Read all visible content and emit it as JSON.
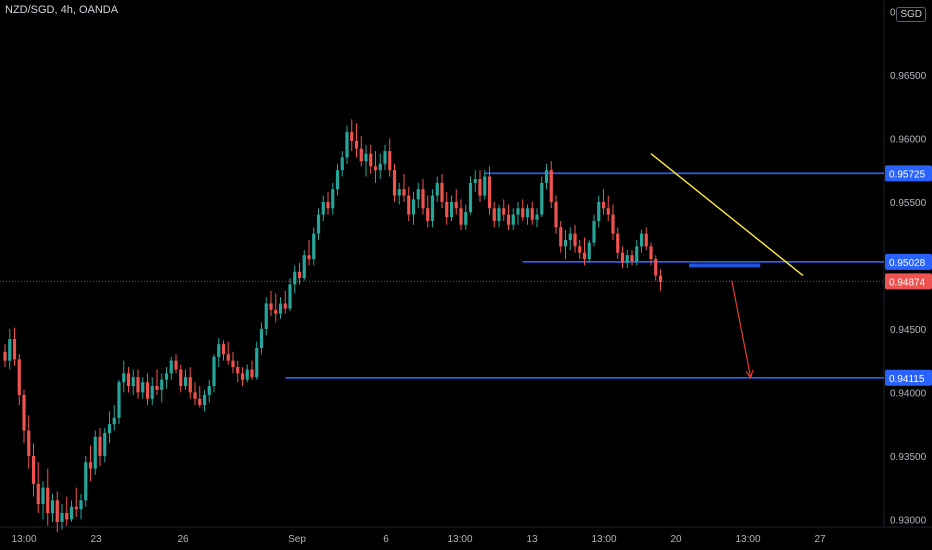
{
  "header": {
    "symbol_title": "NZD/SGD, 4h, OANDA",
    "currency_label": "SGD"
  },
  "colors": {
    "background": "#000000",
    "up": "#26a69a",
    "down": "#ef5350",
    "level_line": "#2962ff",
    "trendline": "#ffeb3b",
    "arrow": "#e53935",
    "axis_text": "#b2b5be"
  },
  "chart_data": {
    "type": "candlestick",
    "title": "NZD/SGD, 4h, OANDA",
    "ylim": [
      0.9294,
      0.9709
    ],
    "y_ticks": [
      "0.93000",
      "0.93500",
      "0.94000",
      "0.94500",
      "0.95000",
      "0.95500",
      "0.96000",
      "0.96500",
      "0.97000"
    ],
    "x_ticks": [
      "13:00",
      "23",
      "26",
      "Sep",
      "6",
      "13:00",
      "13",
      "13:00",
      "20",
      "13:00",
      "27"
    ],
    "price_labels": [
      {
        "text": "0.95725",
        "value": 0.95725,
        "style": "level"
      },
      {
        "text": "0.95028",
        "value": 0.95028,
        "style": "level"
      },
      {
        "text": "0.94874",
        "value": 0.94874,
        "style": "current"
      },
      {
        "text": "0.94115",
        "value": 0.94115,
        "style": "level"
      }
    ],
    "horizontal_levels": [
      {
        "value": 0.95725,
        "from_bar": 101
      },
      {
        "value": 0.95028,
        "from_bar": 109
      },
      {
        "value": 0.94115,
        "from_bar": 59
      }
    ],
    "current_price": 0.94874,
    "trendline": {
      "from": {
        "bar": 136,
        "value": 0.9588
      },
      "to": {
        "bar": 168,
        "value": 0.9492
      }
    },
    "projection_arrow": {
      "from": {
        "bar": 153,
        "value": 0.9488
      },
      "to": {
        "bar": 157,
        "value": 0.94115
      }
    },
    "target_box": {
      "from_bar": 144,
      "to_bar": 159,
      "value": 0.95
    },
    "candles": [
      [
        0.9432,
        0.9438,
        0.942,
        0.9425
      ],
      [
        0.9425,
        0.945,
        0.9418,
        0.9442
      ],
      [
        0.9442,
        0.9451,
        0.9421,
        0.9426
      ],
      [
        0.9426,
        0.943,
        0.939,
        0.9398
      ],
      [
        0.9398,
        0.9402,
        0.936,
        0.937
      ],
      [
        0.937,
        0.9382,
        0.934,
        0.935
      ],
      [
        0.935,
        0.936,
        0.9318,
        0.9328
      ],
      [
        0.9328,
        0.9345,
        0.9305,
        0.9312
      ],
      [
        0.9312,
        0.933,
        0.93,
        0.9325
      ],
      [
        0.9325,
        0.934,
        0.9295,
        0.9305
      ],
      [
        0.9305,
        0.932,
        0.9298,
        0.9315
      ],
      [
        0.9315,
        0.9322,
        0.929,
        0.9298
      ],
      [
        0.9298,
        0.9312,
        0.9292,
        0.9305
      ],
      [
        0.9305,
        0.9318,
        0.9295,
        0.93
      ],
      [
        0.93,
        0.9315,
        0.9298,
        0.931
      ],
      [
        0.931,
        0.9325,
        0.9302,
        0.9308
      ],
      [
        0.9308,
        0.932,
        0.93,
        0.9315
      ],
      [
        0.9315,
        0.935,
        0.931,
        0.9345
      ],
      [
        0.9345,
        0.9358,
        0.933,
        0.934
      ],
      [
        0.934,
        0.937,
        0.9335,
        0.9365
      ],
      [
        0.9365,
        0.9372,
        0.9342,
        0.935
      ],
      [
        0.935,
        0.9372,
        0.9345,
        0.9368
      ],
      [
        0.9368,
        0.9385,
        0.936,
        0.9375
      ],
      [
        0.9375,
        0.939,
        0.937,
        0.938
      ],
      [
        0.938,
        0.941,
        0.9375,
        0.9408
      ],
      [
        0.9408,
        0.9425,
        0.94,
        0.9415
      ],
      [
        0.9415,
        0.942,
        0.94,
        0.9405
      ],
      [
        0.9405,
        0.9418,
        0.9398,
        0.9412
      ],
      [
        0.9412,
        0.9418,
        0.9395,
        0.94
      ],
      [
        0.94,
        0.9412,
        0.9395,
        0.9408
      ],
      [
        0.9408,
        0.9415,
        0.939,
        0.9395
      ],
      [
        0.9395,
        0.9412,
        0.939,
        0.9405
      ],
      [
        0.9405,
        0.9418,
        0.9398,
        0.9402
      ],
      [
        0.9402,
        0.9415,
        0.9392,
        0.941
      ],
      [
        0.941,
        0.942,
        0.9403,
        0.9415
      ],
      [
        0.9415,
        0.9428,
        0.941,
        0.9425
      ],
      [
        0.9425,
        0.943,
        0.9415,
        0.9418
      ],
      [
        0.9418,
        0.9422,
        0.94,
        0.9405
      ],
      [
        0.9405,
        0.9418,
        0.9402,
        0.9412
      ],
      [
        0.9412,
        0.942,
        0.9395,
        0.94
      ],
      [
        0.94,
        0.9408,
        0.939,
        0.9395
      ],
      [
        0.9395,
        0.9405,
        0.9388,
        0.939
      ],
      [
        0.939,
        0.9402,
        0.9385,
        0.9398
      ],
      [
        0.9398,
        0.941,
        0.9392,
        0.9405
      ],
      [
        0.9405,
        0.943,
        0.94,
        0.9428
      ],
      [
        0.9428,
        0.9443,
        0.942,
        0.9438
      ],
      [
        0.9438,
        0.9441,
        0.9425,
        0.943
      ],
      [
        0.943,
        0.944,
        0.9422,
        0.9425
      ],
      [
        0.9425,
        0.9432,
        0.9415,
        0.942
      ],
      [
        0.942,
        0.9425,
        0.9408,
        0.9415
      ],
      [
        0.9415,
        0.942,
        0.9405,
        0.941
      ],
      [
        0.941,
        0.9422,
        0.9408,
        0.9418
      ],
      [
        0.9418,
        0.9425,
        0.941,
        0.9412
      ],
      [
        0.9412,
        0.944,
        0.941,
        0.9435
      ],
      [
        0.9435,
        0.9455,
        0.943,
        0.945
      ],
      [
        0.945,
        0.9475,
        0.9445,
        0.947
      ],
      [
        0.947,
        0.948,
        0.946,
        0.9465
      ],
      [
        0.9465,
        0.9478,
        0.9455,
        0.9462
      ],
      [
        0.9462,
        0.9475,
        0.9458,
        0.947
      ],
      [
        0.947,
        0.948,
        0.9462,
        0.9466
      ],
      [
        0.9466,
        0.949,
        0.9464,
        0.9485
      ],
      [
        0.9485,
        0.95,
        0.9478,
        0.9495
      ],
      [
        0.9495,
        0.9502,
        0.9485,
        0.949
      ],
      [
        0.949,
        0.9512,
        0.9488,
        0.9508
      ],
      [
        0.9508,
        0.952,
        0.95,
        0.9505
      ],
      [
        0.9505,
        0.953,
        0.95,
        0.9525
      ],
      [
        0.9525,
        0.9545,
        0.952,
        0.954
      ],
      [
        0.954,
        0.9555,
        0.9535,
        0.955
      ],
      [
        0.955,
        0.9558,
        0.954,
        0.9545
      ],
      [
        0.9545,
        0.9565,
        0.954,
        0.956
      ],
      [
        0.956,
        0.958,
        0.9555,
        0.9575
      ],
      [
        0.9575,
        0.959,
        0.957,
        0.9585
      ],
      [
        0.9585,
        0.961,
        0.958,
        0.9605
      ],
      [
        0.9605,
        0.9615,
        0.959,
        0.9598
      ],
      [
        0.9598,
        0.9612,
        0.9585,
        0.9592
      ],
      [
        0.9592,
        0.9602,
        0.9578,
        0.9582
      ],
      [
        0.9582,
        0.9595,
        0.957,
        0.9588
      ],
      [
        0.9588,
        0.9595,
        0.9572,
        0.9578
      ],
      [
        0.9578,
        0.959,
        0.9565,
        0.9575
      ],
      [
        0.9575,
        0.9588,
        0.9568,
        0.958
      ],
      [
        0.958,
        0.9595,
        0.9575,
        0.959
      ],
      [
        0.959,
        0.96,
        0.957,
        0.9575
      ],
      [
        0.9575,
        0.958,
        0.955,
        0.9555
      ],
      [
        0.9555,
        0.9565,
        0.9548,
        0.956
      ],
      [
        0.956,
        0.9572,
        0.955,
        0.9555
      ],
      [
        0.9555,
        0.9562,
        0.9535,
        0.954
      ],
      [
        0.954,
        0.9558,
        0.9532,
        0.9552
      ],
      [
        0.9552,
        0.9565,
        0.9545,
        0.956
      ],
      [
        0.956,
        0.9568,
        0.954,
        0.9545
      ],
      [
        0.9545,
        0.9555,
        0.953,
        0.9535
      ],
      [
        0.9535,
        0.956,
        0.953,
        0.9555
      ],
      [
        0.9555,
        0.957,
        0.955,
        0.9565
      ],
      [
        0.9565,
        0.9572,
        0.9545,
        0.955
      ],
      [
        0.955,
        0.9558,
        0.9532,
        0.9538
      ],
      [
        0.9538,
        0.9555,
        0.9535,
        0.955
      ],
      [
        0.955,
        0.956,
        0.954,
        0.9545
      ],
      [
        0.9545,
        0.9552,
        0.9528,
        0.9532
      ],
      [
        0.9532,
        0.9548,
        0.9528,
        0.9542
      ],
      [
        0.9542,
        0.957,
        0.954,
        0.9565
      ],
      [
        0.9565,
        0.9575,
        0.9558,
        0.9568
      ],
      [
        0.9568,
        0.9575,
        0.955,
        0.9555
      ],
      [
        0.9555,
        0.9575,
        0.9552,
        0.957
      ],
      [
        0.957,
        0.9578,
        0.954,
        0.9545
      ],
      [
        0.9545,
        0.955,
        0.953,
        0.9535
      ],
      [
        0.9535,
        0.9548,
        0.953,
        0.9545
      ],
      [
        0.9545,
        0.9552,
        0.9535,
        0.954
      ],
      [
        0.954,
        0.9548,
        0.9528,
        0.9532
      ],
      [
        0.9532,
        0.9545,
        0.9528,
        0.954
      ],
      [
        0.954,
        0.955,
        0.9532,
        0.9545
      ],
      [
        0.9545,
        0.9552,
        0.9535,
        0.9538
      ],
      [
        0.9538,
        0.9548,
        0.9532,
        0.9545
      ],
      [
        0.9545,
        0.955,
        0.9532,
        0.9536
      ],
      [
        0.9536,
        0.9545,
        0.953,
        0.954
      ],
      [
        0.954,
        0.957,
        0.9538,
        0.9565
      ],
      [
        0.9565,
        0.958,
        0.956,
        0.9575
      ],
      [
        0.9575,
        0.9582,
        0.9545,
        0.955
      ],
      [
        0.955,
        0.9555,
        0.9525,
        0.953
      ],
      [
        0.953,
        0.9535,
        0.951,
        0.9515
      ],
      [
        0.9515,
        0.9528,
        0.9505,
        0.952
      ],
      [
        0.952,
        0.953,
        0.9512,
        0.9525
      ],
      [
        0.9525,
        0.9532,
        0.951,
        0.9515
      ],
      [
        0.9515,
        0.952,
        0.9505,
        0.951
      ],
      [
        0.951,
        0.9522,
        0.95,
        0.9505
      ],
      [
        0.9505,
        0.952,
        0.9502,
        0.9518
      ],
      [
        0.9518,
        0.954,
        0.9515,
        0.9535
      ],
      [
        0.9535,
        0.9555,
        0.953,
        0.955
      ],
      [
        0.955,
        0.956,
        0.954,
        0.9545
      ],
      [
        0.9545,
        0.9555,
        0.9535,
        0.954
      ],
      [
        0.954,
        0.9548,
        0.952,
        0.9525
      ],
      [
        0.9525,
        0.953,
        0.9505,
        0.951
      ],
      [
        0.951,
        0.9515,
        0.9498,
        0.9502
      ],
      [
        0.9502,
        0.9512,
        0.9498,
        0.9508
      ],
      [
        0.9508,
        0.9512,
        0.95,
        0.9503
      ],
      [
        0.9503,
        0.952,
        0.95,
        0.9515
      ],
      [
        0.9515,
        0.9528,
        0.951,
        0.9525
      ],
      [
        0.9525,
        0.953,
        0.9512,
        0.9515
      ],
      [
        0.9515,
        0.9518,
        0.95,
        0.9505
      ],
      [
        0.9505,
        0.9508,
        0.9488,
        0.9492
      ],
      [
        0.9492,
        0.9497,
        0.948,
        0.9487
      ]
    ]
  }
}
